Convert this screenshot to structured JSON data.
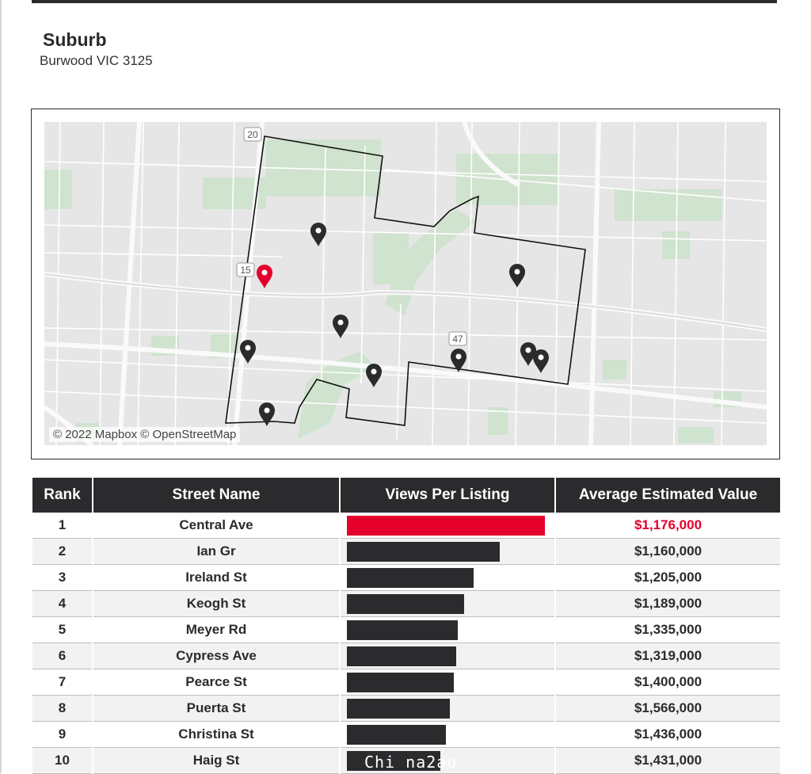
{
  "header": {
    "title": "Suburb",
    "subtitle": "Burwood VIC 3125"
  },
  "map": {
    "attribution": "© 2022 Mapbox © OpenStreetMap",
    "road_shields": [
      "20",
      "15",
      "47"
    ],
    "highlight_color": "#e4002b"
  },
  "table": {
    "headers": {
      "rank": "Rank",
      "street": "Street Name",
      "views": "Views Per Listing",
      "value": "Average Estimated Value"
    },
    "rows": [
      {
        "rank": "1",
        "street": "Central Ave",
        "views_rel": 1.0,
        "value": "$1,176,000",
        "highlight": true
      },
      {
        "rank": "2",
        "street": "Ian Gr",
        "views_rel": 0.77,
        "value": "$1,160,000"
      },
      {
        "rank": "3",
        "street": "Ireland St",
        "views_rel": 0.64,
        "value": "$1,205,000"
      },
      {
        "rank": "4",
        "street": "Keogh St",
        "views_rel": 0.59,
        "value": "$1,189,000"
      },
      {
        "rank": "5",
        "street": "Meyer Rd",
        "views_rel": 0.56,
        "value": "$1,335,000"
      },
      {
        "rank": "6",
        "street": "Cypress Ave",
        "views_rel": 0.55,
        "value": "$1,319,000"
      },
      {
        "rank": "7",
        "street": "Pearce St",
        "views_rel": 0.54,
        "value": "$1,400,000"
      },
      {
        "rank": "8",
        "street": "Puerta St",
        "views_rel": 0.52,
        "value": "$1,566,000"
      },
      {
        "rank": "9",
        "street": "Christina St",
        "views_rel": 0.5,
        "value": "$1,436,000"
      },
      {
        "rank": "10",
        "street": "Haig St",
        "views_rel": 0.47,
        "value": "$1,431,000"
      }
    ]
  },
  "watermark": "Chi na2au"
}
